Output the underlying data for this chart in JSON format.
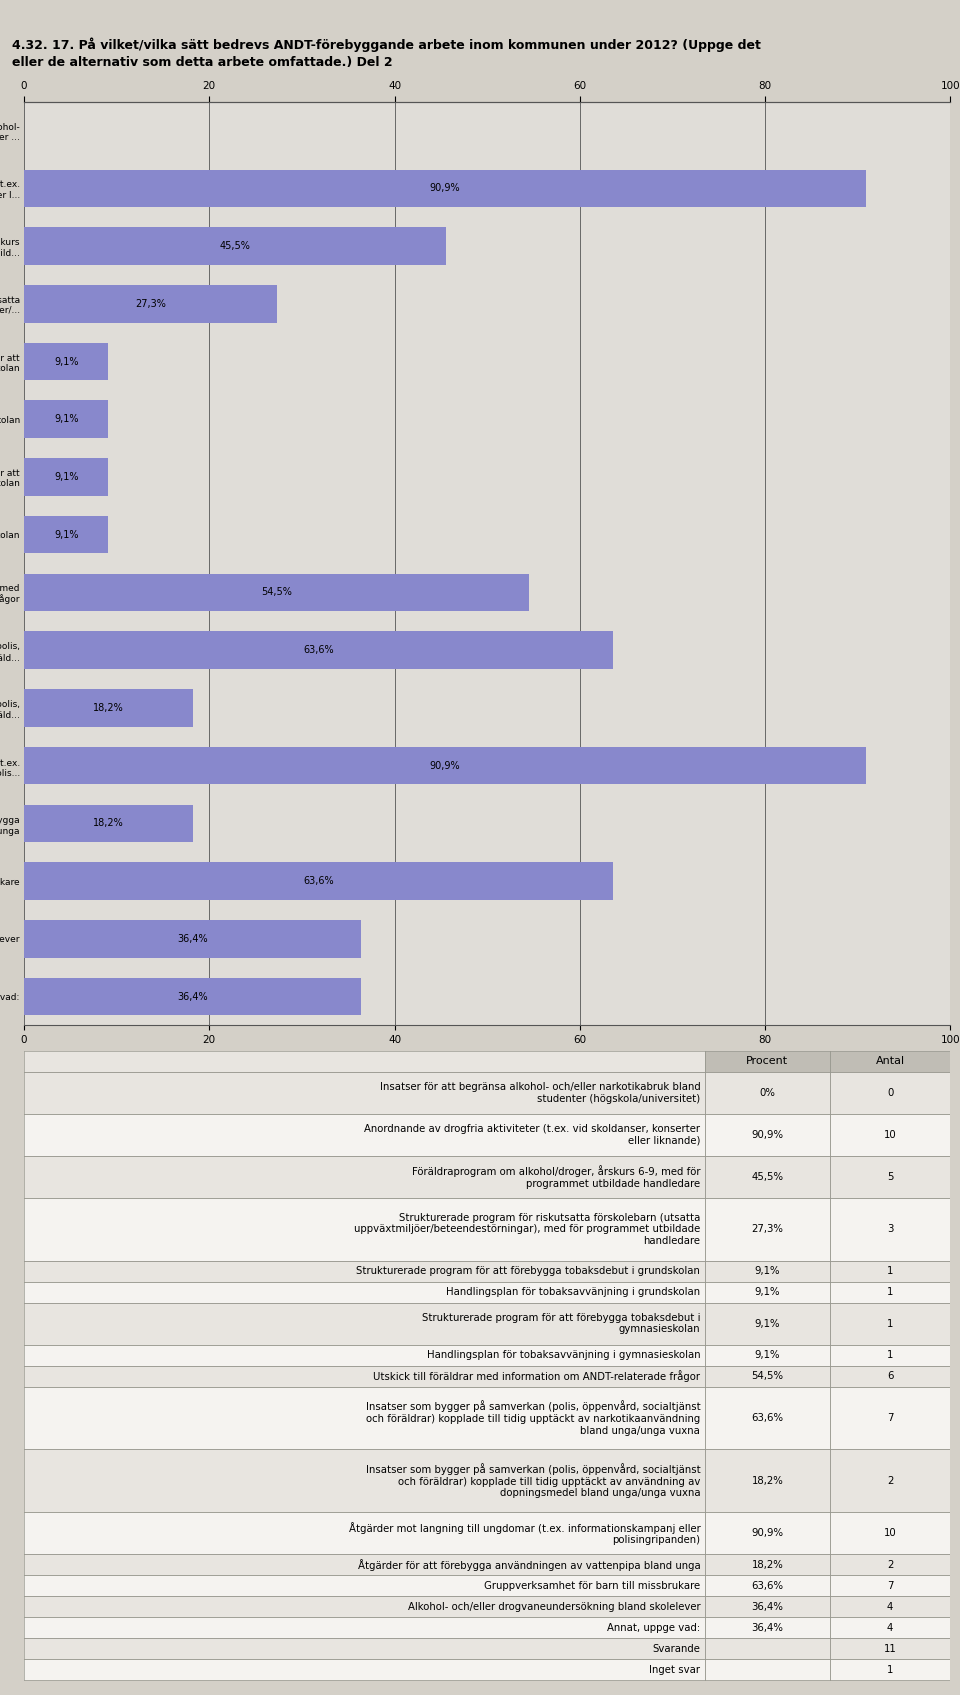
{
  "title": "4.32. 17. På vilket/vilka sätt bedrevs ANDT-förebyggande arbete inom kommunen under 2012? (Uppge det\neller de alternativ som detta arbete omfattade.) Del 2",
  "bar_color": "#8888cc",
  "bg_color": "#d4d0c8",
  "chart_bg": "#e0ddd8",
  "categories": [
    "Insatser för att begränsa alkohol-\noch/eller narkotikabruk bland studenter ...",
    "Anordnande av drogfria aktiviteter (t.ex.\nvid skoldanser, konserter eller l...",
    "Föräldraprogram om alkohol/droger, årskurs\n6-9, med för programmet utbild...",
    "Strukturerade program för riskutsatta\nförskolebarn (utsatta uppväxtmiljöer/...",
    "Strukturerade program för att\nförebygga tobaksdebut i grundskolan",
    "Handlingsplan för tobaksavvänjning i grundskolan",
    "Strukturerade program för att\nförebygga tobaksdebut i gymnasieskolan",
    "Handlingsplan för tobaksavvänjning i gymnasieskolan",
    "Utskick till föräldrar med\ninformation om ANDT-relaterade frågor",
    "Insatser som bygger på samverkan (polis,\nöppenvård, socialtjänst och föräld...",
    "Insatser som bygger på samverkan (polis,\nöppenvård, socialtjänst och föräld...",
    "Åtgärder mot langning till ungdomar (t.ex.\ninformationskampanjer eller polis...",
    "Åtgärder för att förebygga\nanvändningen av vattenpipa bland unga",
    "Gruppverksamhet för barn till missbrukare",
    "Alkohol- och/eller drogvaneundersökning bland skolelever",
    "Annat, uppge vad:"
  ],
  "values": [
    0.0,
    90.9,
    45.5,
    27.3,
    9.1,
    9.1,
    9.1,
    9.1,
    54.5,
    63.6,
    18.2,
    90.9,
    18.2,
    63.6,
    36.4,
    36.4
  ],
  "pct_labels": [
    "",
    "90,9%",
    "45,5%",
    "27,3%",
    "9,1%",
    "9,1%",
    "9,1%",
    "9,1%",
    "54,5%",
    "63,6%",
    "18,2%",
    "90,9%",
    "18,2%",
    "63,6%",
    "36,4%",
    "36,4%"
  ],
  "xlim": [
    0,
    100
  ],
  "xticks": [
    0,
    20,
    40,
    60,
    80,
    100
  ],
  "table_header": [
    "",
    "Procent",
    "Antal"
  ],
  "table_rows": [
    [
      "Insatser för att begränsa alkohol- och/eller narkotikabruk bland\nstudenter (högskola/universitet)",
      "0%",
      "0"
    ],
    [
      "Anordnande av drogfria aktiviteter (t.ex. vid skoldanser, konserter\neller liknande)",
      "90,9%",
      "10"
    ],
    [
      "Föräldraprogram om alkohol/droger, årskurs 6-9, med för\nprogrammet utbildade handledare",
      "45,5%",
      "5"
    ],
    [
      "Strukturerade program för riskutsatta förskolebarn (utsatta\nuppväxtmiljöer/beteendestörningar), med för programmet utbildade\nhandledare",
      "27,3%",
      "3"
    ],
    [
      "Strukturerade program för att förebygga tobaksdebut i grundskolan",
      "9,1%",
      "1"
    ],
    [
      "Handlingsplan för tobaksavvänjning i grundskolan",
      "9,1%",
      "1"
    ],
    [
      "Strukturerade program för att förebygga tobaksdebut i\ngymnasieskolan",
      "9,1%",
      "1"
    ],
    [
      "Handlingsplan för tobaksavvänjning i gymnasieskolan",
      "9,1%",
      "1"
    ],
    [
      "Utskick till föräldrar med information om ANDT-relaterade frågor",
      "54,5%",
      "6"
    ],
    [
      "Insatser som bygger på samverkan (polis, öppenvård, socialtjänst\noch föräldrar) kopplade till tidig upptäckt av narkotikaanvändning\nbland unga/unga vuxna",
      "63,6%",
      "7"
    ],
    [
      "Insatser som bygger på samverkan (polis, öppenvård, socialtjänst\noch föräldrar) kopplade till tidig upptäckt av användning av\ndopningsmedel bland unga/unga vuxna",
      "18,2%",
      "2"
    ],
    [
      "Åtgärder mot langning till ungdomar (t.ex. informationskampanj eller\npolisingripanden)",
      "90,9%",
      "10"
    ],
    [
      "Åtgärder för att förebygga användningen av vattenpipa bland unga",
      "18,2%",
      "2"
    ],
    [
      "Gruppverksamhet för barn till missbrukare",
      "63,6%",
      "7"
    ],
    [
      "Alkohol- och/eller drogvaneundersökning bland skolelever",
      "36,4%",
      "4"
    ],
    [
      "Annat, uppge vad:",
      "36,4%",
      "4"
    ],
    [
      "Svarande",
      "",
      "11"
    ],
    [
      "Inget svar",
      "",
      "1"
    ]
  ],
  "row_nlines": [
    2,
    2,
    2,
    3,
    1,
    1,
    2,
    1,
    1,
    3,
    3,
    2,
    1,
    1,
    1,
    1,
    1,
    1
  ],
  "header_color": "#c0bdb5",
  "row_colors": [
    "#e8e5e0",
    "#f5f3f0"
  ],
  "border_color": "#999990",
  "white": "#ffffff"
}
